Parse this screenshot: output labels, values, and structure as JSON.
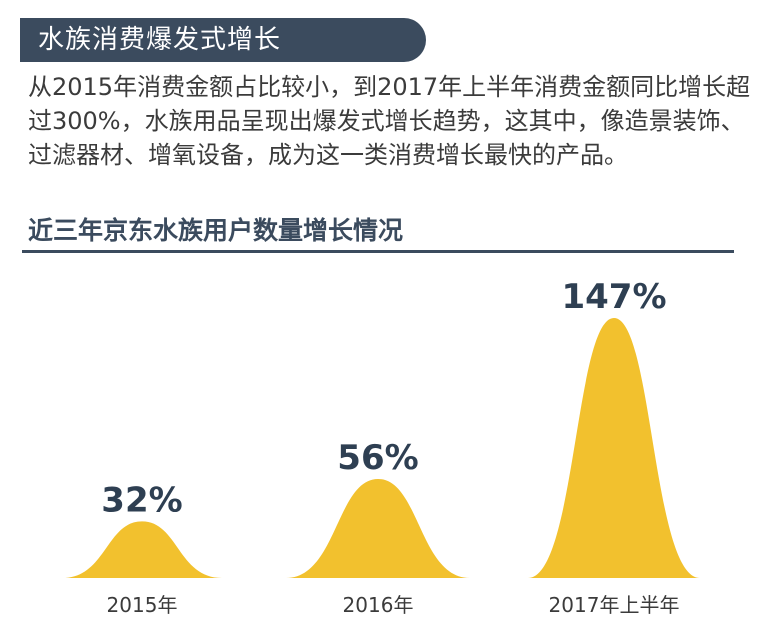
{
  "header": {
    "title": "水族消费爆发式增长",
    "description": "从2015年消费金额占比较小，到2017年上半年消费金额同比增长超过300%，水族用品呈现出爆发式增长趋势，这其中，像造景装饰、过滤器材、增氧设备，成为这一类消费增长最快的产品。"
  },
  "chart_data": {
    "type": "area",
    "title": "近三年京东水族用户数量增长情况",
    "categories": [
      "2015年",
      "2016年",
      "2017年上半年"
    ],
    "values": [
      32,
      56,
      147
    ],
    "value_labels": [
      "32%",
      "56%",
      "147%"
    ],
    "unit": "%",
    "color": "#f2c12e",
    "label_color": "#2e3f52"
  }
}
